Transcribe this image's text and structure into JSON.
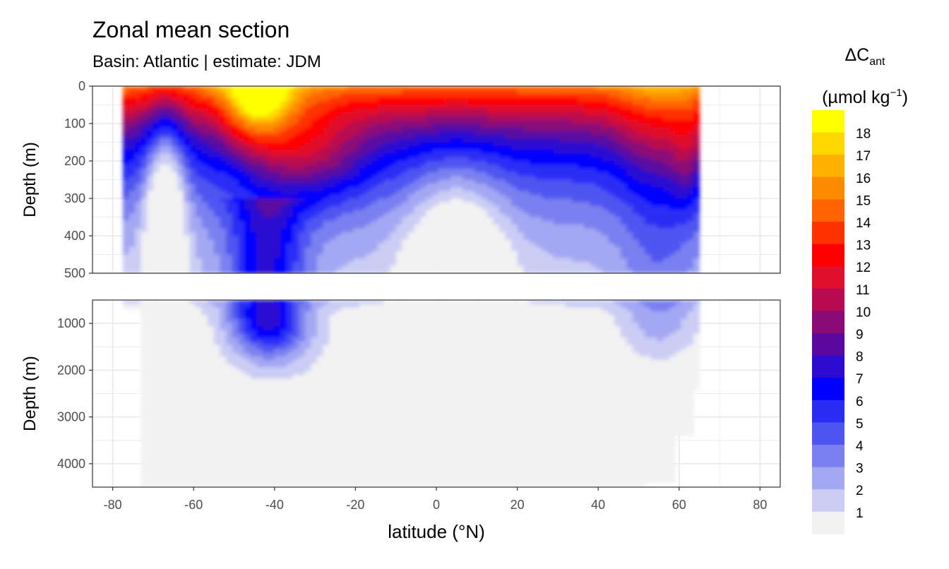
{
  "chart_data": {
    "type": "heatmap",
    "title": "Zonal mean section",
    "subtitle": "Basin: Atlantic | estimate: JDM",
    "xlabel": "latitude (°N)",
    "ylabel": "Depth (m)",
    "xlim": [
      -85,
      85
    ],
    "x_ticks": [
      -80,
      -60,
      -40,
      -20,
      0,
      20,
      40,
      60,
      80
    ],
    "x_tick_labels": [
      "-80",
      "-60",
      "-40",
      "-20",
      "0",
      "20",
      "40",
      "60",
      "80"
    ],
    "panels": [
      {
        "name": "upper",
        "ylim": [
          0,
          500
        ],
        "y_ticks": [
          0,
          100,
          200,
          300,
          400,
          500
        ],
        "y_tick_labels": [
          "0",
          "100",
          "200",
          "300",
          "400",
          "500"
        ]
      },
      {
        "name": "lower",
        "ylim": [
          500,
          4500
        ],
        "y_ticks": [
          1000,
          2000,
          3000,
          4000
        ],
        "y_tick_labels": [
          "1000",
          "2000",
          "3000",
          "4000"
        ]
      }
    ],
    "grid": true,
    "legend": {
      "title_main": "ΔC",
      "title_sub": "ant",
      "title_unit_left": "(µmol kg",
      "title_unit_sup": "−1",
      "title_unit_right": ")",
      "position": "right",
      "levels": [
        {
          "label": "18",
          "color": "#ffff00"
        },
        {
          "label": "17",
          "color": "#ffd700"
        },
        {
          "label": "16",
          "color": "#ffb000"
        },
        {
          "label": "15",
          "color": "#ff8c00"
        },
        {
          "label": "14",
          "color": "#ff6400"
        },
        {
          "label": "13",
          "color": "#ff3200"
        },
        {
          "label": "12",
          "color": "#ff0000"
        },
        {
          "label": "11",
          "color": "#e0102c"
        },
        {
          "label": "10",
          "color": "#b80a50"
        },
        {
          "label": "9",
          "color": "#8a0a78"
        },
        {
          "label": "8",
          "color": "#5a08a0"
        },
        {
          "label": "7",
          "color": "#2c0ad0"
        },
        {
          "label": "6",
          "color": "#0000ff"
        },
        {
          "label": "5",
          "color": "#2a2ef5"
        },
        {
          "label": "4",
          "color": "#4f55f0"
        },
        {
          "label": "3",
          "color": "#7a80f0"
        },
        {
          "label": "2",
          "color": "#a4a8f2"
        },
        {
          "label": "1",
          "color": "#cbcdf4"
        },
        {
          "label": "",
          "color": "#f2f2f2"
        }
      ]
    },
    "field": {
      "lat_range": [
        -77.5,
        64.5
      ],
      "description_levels": "ΔCant by latitude and depth"
    }
  }
}
